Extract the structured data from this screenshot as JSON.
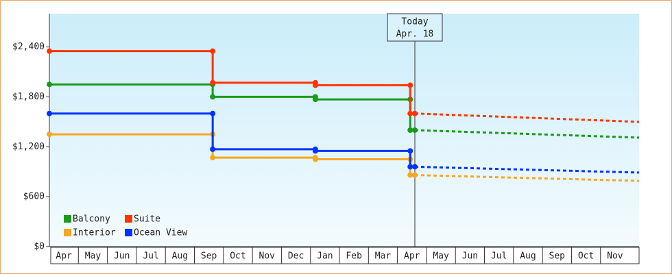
{
  "chart_data": {
    "type": "line",
    "step": true,
    "categories": [
      "Apr",
      "May",
      "Jun",
      "Jul",
      "Aug",
      "Sep",
      "Oct",
      "Nov",
      "Dec",
      "Jan",
      "Feb",
      "Mar",
      "Apr",
      "May",
      "Jun",
      "Jul",
      "Aug",
      "Sep",
      "Oct",
      "Nov"
    ],
    "xlim": [
      0,
      20.33
    ],
    "ylim": [
      0,
      2800
    ],
    "yticks": [
      {
        "value": 0,
        "label": "$0"
      },
      {
        "value": 600,
        "label": "$600"
      },
      {
        "value": 1200,
        "label": "$1,200"
      },
      {
        "value": 1800,
        "label": "$1,800"
      },
      {
        "value": 2400,
        "label": "$2,400"
      }
    ],
    "annotation": {
      "lines": [
        "Today",
        "Apr. 18"
      ],
      "x": 12.6
    },
    "legend": "bottom-left",
    "series": [
      {
        "name": "Balcony",
        "color": "#1a9a1a",
        "x": [
          0,
          5.63,
          5.63,
          9.17,
          9.17,
          12.44,
          12.44,
          12.6
        ],
        "values": [
          1950,
          1950,
          1800,
          1800,
          1770,
          1770,
          1400,
          1400
        ],
        "forecast_x": [
          12.6,
          20.33
        ],
        "forecast_values": [
          1400,
          1310
        ]
      },
      {
        "name": "Suite",
        "color": "#ff3300",
        "x": [
          0,
          5.63,
          5.63,
          9.17,
          9.17,
          12.44,
          12.44,
          12.6
        ],
        "values": [
          2350,
          2350,
          1970,
          1970,
          1940,
          1940,
          1600,
          1600
        ],
        "forecast_x": [
          12.6,
          20.33
        ],
        "forecast_values": [
          1600,
          1500
        ]
      },
      {
        "name": "Interior",
        "color": "#f5a623",
        "x": [
          0,
          5.63,
          5.63,
          9.17,
          9.17,
          12.44,
          12.44,
          12.6
        ],
        "values": [
          1350,
          1350,
          1070,
          1070,
          1050,
          1050,
          860,
          860
        ],
        "forecast_x": [
          12.6,
          20.33
        ],
        "forecast_values": [
          860,
          790
        ]
      },
      {
        "name": "Ocean View",
        "color": "#0033ff",
        "x": [
          0,
          5.63,
          5.63,
          9.17,
          9.17,
          12.44,
          12.44,
          12.6
        ],
        "values": [
          1600,
          1600,
          1170,
          1170,
          1150,
          1150,
          960,
          960
        ],
        "forecast_x": [
          12.6,
          20.33
        ],
        "forecast_values": [
          960,
          890
        ]
      }
    ]
  }
}
